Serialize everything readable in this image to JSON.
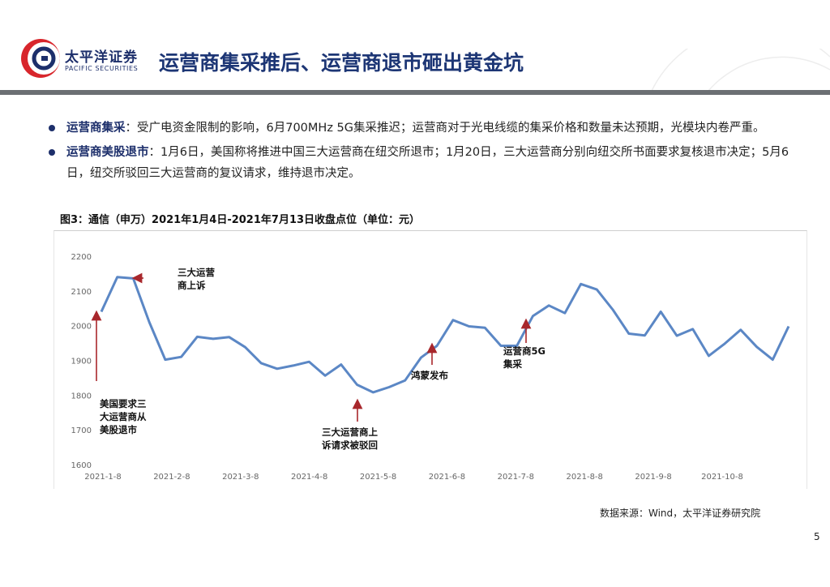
{
  "header": {
    "logo_cn": "太平洋证券",
    "logo_en": "PACIFIC SECURITIES",
    "title": "运营商集采推后、运营商退市砸出黄金坑"
  },
  "bullets": [
    {
      "head": "运营商集采",
      "text": "：受广电资金限制的影响，6月700MHz 5G集采推迟；运营商对于光电线缆的集采价格和数量未达预期，光模块内卷严重。"
    },
    {
      "head": "运营商美股退市",
      "text": "：1月6日，美国称将推进中国三大运营商在纽交所退市；1月20日，三大运营商分别向纽交所书面要求复核退市决定；5月6日，纽交所驳回三大运营商的复议请求，维持退市决定。"
    }
  ],
  "figure_title": "图3：通信（申万）2021年1月4日-2021年7月13日收盘点位（单位：元）",
  "source": "数据来源：Wind，太平洋证券研究院",
  "page_number": "5",
  "colors": {
    "brand": "#1d2f6b",
    "logo_red": "#d8262c",
    "line": "#5b87c5",
    "arrow": "#a8272c",
    "rule": "#6c6f73"
  },
  "chart_data": {
    "type": "line",
    "title": "图3：通信（申万）2021年1月4日-2021年7月13日收盘点位（单位：元）",
    "ylim": [
      1600,
      2200
    ],
    "yticks": [
      1600,
      1700,
      1800,
      1900,
      2000,
      2100,
      2200
    ],
    "xticks": [
      "2021-1-8",
      "2021-2-8",
      "2021-3-8",
      "2021-4-8",
      "2021-5-8",
      "2021-6-8",
      "2021-7-8",
      "2021-8-8",
      "2021-9-8",
      "2021-10-8"
    ],
    "grid": false,
    "series": [
      {
        "values": [
          2040,
          2140,
          2136,
          2010,
          1902,
          1910,
          1968,
          1962,
          1967,
          1938,
          1892,
          1876,
          1885,
          1896,
          1856,
          1888,
          1830,
          1808,
          1823,
          1842,
          1908,
          1942,
          2016,
          1998,
          1994,
          1942,
          1942,
          2028,
          2058,
          2036,
          2120,
          2104,
          2046,
          1977,
          1972,
          2040,
          1971,
          1990,
          1913,
          1948,
          1988,
          1939,
          1902,
          1998
        ]
      }
    ],
    "annotations": [
      {
        "label_lines": [
          "三大运营",
          "商上诉"
        ],
        "index": 2
      },
      {
        "label_lines": [
          "美国要求三",
          "大运营商从",
          "美股退市"
        ],
        "index": 0
      },
      {
        "label_lines": [
          "三大运营商上",
          "诉请求被驳回"
        ],
        "index": 16
      },
      {
        "label_lines": [
          "鸿蒙发布"
        ],
        "index": 21
      },
      {
        "label_lines": [
          "运营商5G",
          "集采"
        ],
        "index": 26
      }
    ]
  }
}
